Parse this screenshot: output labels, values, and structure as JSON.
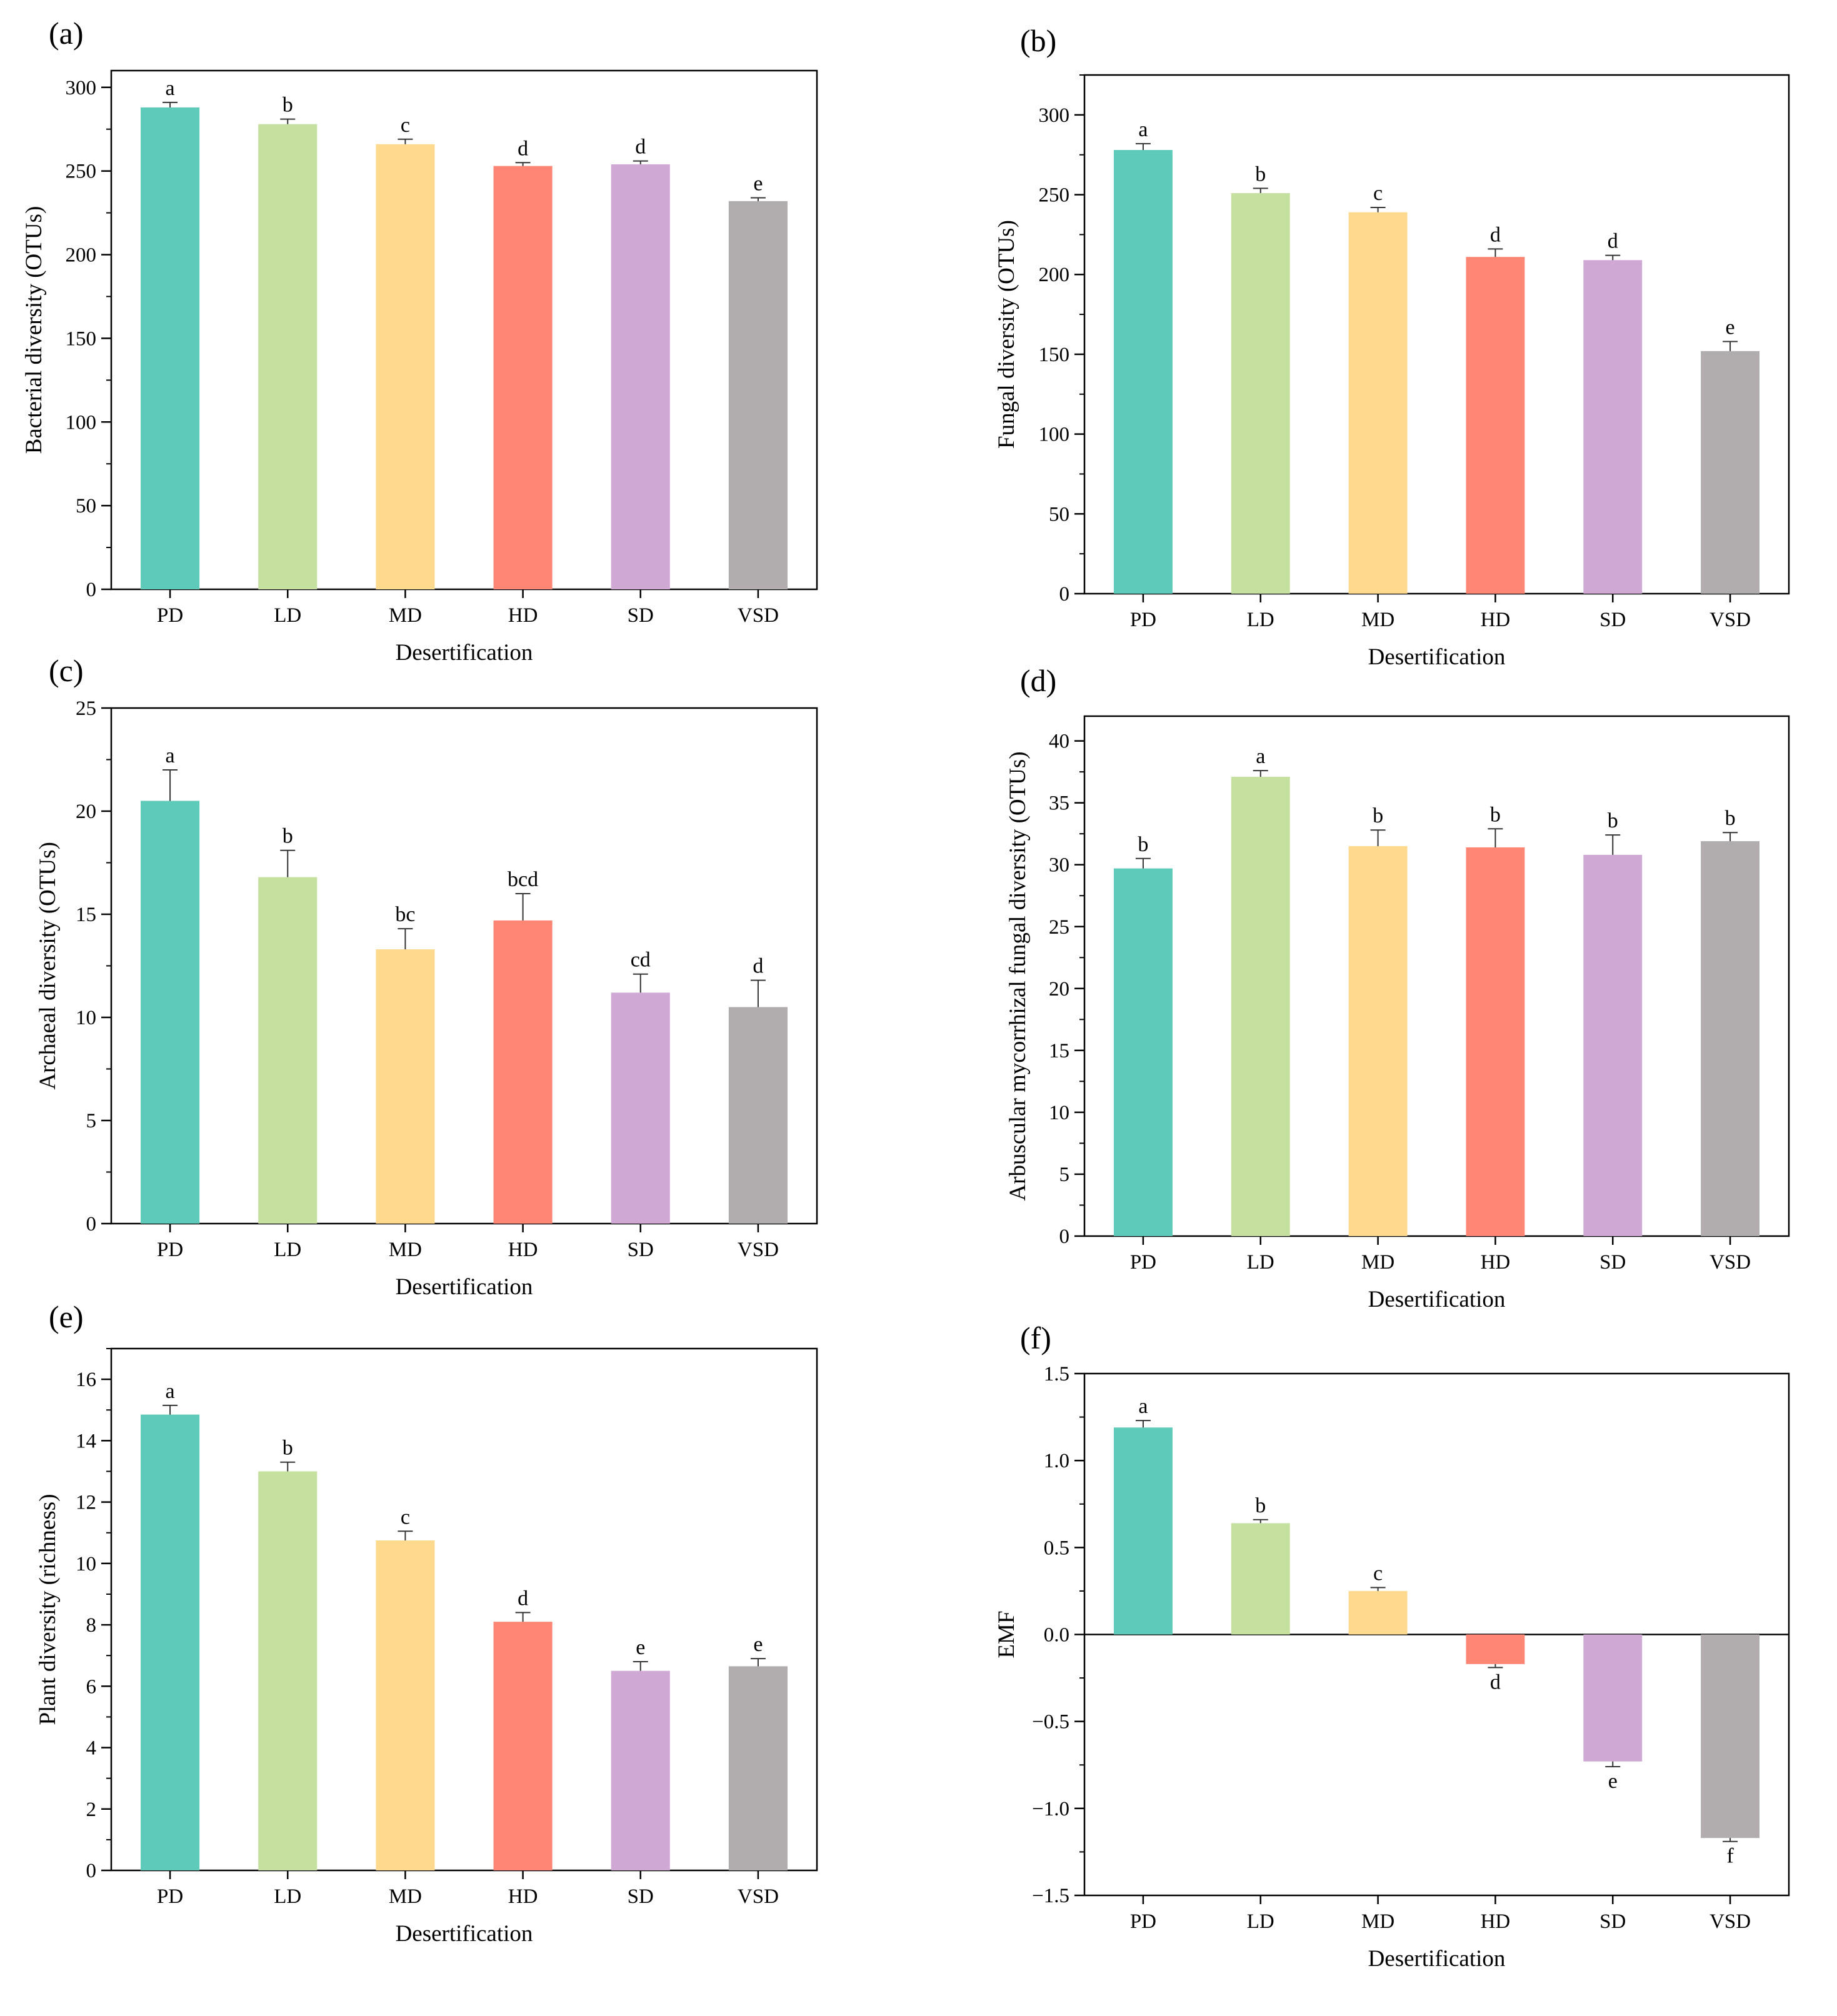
{
  "chart_data": [
    {
      "panel": "(a)",
      "type": "bar",
      "categories": [
        "PD",
        "LD",
        "MD",
        "HD",
        "SD",
        "VSD"
      ],
      "values": [
        288,
        278,
        266,
        253,
        254,
        232
      ],
      "errors": [
        3,
        3,
        3,
        2,
        2,
        2
      ],
      "letters": [
        "a",
        "b",
        "c",
        "d",
        "d",
        "e"
      ],
      "colors": [
        "#5ECBBA",
        "#C5E09F",
        "#FED98E",
        "#FF8674",
        "#CFA8D3",
        "#B1ACAD"
      ],
      "xlabel": "Desertification",
      "ylabel": "Bacterial diversity (OTUs)",
      "ylim": [
        0,
        310
      ],
      "yticks": [
        0,
        50,
        100,
        150,
        200,
        250,
        300
      ],
      "ytick_labels": [
        "0",
        "50",
        "100",
        "150",
        "200",
        "250",
        "300"
      ],
      "minor_step": 25
    },
    {
      "panel": "(b)",
      "type": "bar",
      "categories": [
        "PD",
        "LD",
        "MD",
        "HD",
        "SD",
        "VSD"
      ],
      "values": [
        278,
        251,
        239,
        211,
        209,
        152
      ],
      "errors": [
        4,
        3,
        3,
        5,
        3,
        6
      ],
      "letters": [
        "a",
        "b",
        "c",
        "d",
        "d",
        "e"
      ],
      "colors": [
        "#5ECBBA",
        "#C5E09F",
        "#FED98E",
        "#FF8674",
        "#CFA8D3",
        "#B1ACAD"
      ],
      "xlabel": "Desertification",
      "ylabel": "Fungal diversity (OTUs)",
      "ylim": [
        0,
        325
      ],
      "yticks": [
        0,
        50,
        100,
        150,
        200,
        250,
        300
      ],
      "ytick_labels": [
        "0",
        "50",
        "100",
        "150",
        "200",
        "250",
        "300"
      ],
      "minor_step": 25
    },
    {
      "panel": "(c)",
      "type": "bar",
      "categories": [
        "PD",
        "LD",
        "MD",
        "HD",
        "SD",
        "VSD"
      ],
      "values": [
        20.5,
        16.8,
        13.3,
        14.7,
        11.2,
        10.5
      ],
      "errors": [
        1.5,
        1.3,
        1.0,
        1.3,
        0.9,
        1.3
      ],
      "letters": [
        "a",
        "b",
        "bc",
        "bcd",
        "cd",
        "d"
      ],
      "colors": [
        "#5ECBBA",
        "#C5E09F",
        "#FED98E",
        "#FF8674",
        "#CFA8D3",
        "#B1ACAD"
      ],
      "xlabel": "Desertification",
      "ylabel": "Archaeal diversity (OTUs)",
      "ylim": [
        0,
        25
      ],
      "yticks": [
        0,
        5,
        10,
        15,
        20,
        25
      ],
      "ytick_labels": [
        "0",
        "5",
        "10",
        "15",
        "20",
        "25"
      ],
      "minor_step": 2.5
    },
    {
      "panel": "(d)",
      "type": "bar",
      "categories": [
        "PD",
        "LD",
        "MD",
        "HD",
        "SD",
        "VSD"
      ],
      "values": [
        29.7,
        37.1,
        31.5,
        31.4,
        30.8,
        31.9
      ],
      "errors": [
        0.8,
        0.5,
        1.3,
        1.5,
        1.6,
        0.7
      ],
      "letters": [
        "b",
        "a",
        "b",
        "b",
        "b",
        "b"
      ],
      "colors": [
        "#5ECBBA",
        "#C5E09F",
        "#FED98E",
        "#FF8674",
        "#CFA8D3",
        "#B1ACAD"
      ],
      "xlabel": "Desertification",
      "ylabel": "Arbuscular mycorrhizal fungal diversity (OTUs)",
      "ylim": [
        0,
        42
      ],
      "yticks": [
        0,
        5,
        10,
        15,
        20,
        25,
        30,
        35,
        40
      ],
      "ytick_labels": [
        "0",
        "5",
        "10",
        "15",
        "20",
        "25",
        "30",
        "35",
        "40"
      ],
      "minor_step": 2.5
    },
    {
      "panel": "(e)",
      "type": "bar",
      "categories": [
        "PD",
        "LD",
        "MD",
        "HD",
        "SD",
        "VSD"
      ],
      "values": [
        14.85,
        13.0,
        10.75,
        8.1,
        6.5,
        6.65
      ],
      "errors": [
        0.3,
        0.3,
        0.3,
        0.3,
        0.3,
        0.25
      ],
      "letters": [
        "a",
        "b",
        "c",
        "d",
        "e",
        "e"
      ],
      "colors": [
        "#5ECBBA",
        "#C5E09F",
        "#FED98E",
        "#FF8674",
        "#CFA8D3",
        "#B1ACAD"
      ],
      "xlabel": "Desertification",
      "ylabel": "Plant diversity (richness)",
      "ylim": [
        0,
        17
      ],
      "yticks": [
        0,
        2,
        4,
        6,
        8,
        10,
        12,
        14,
        16
      ],
      "ytick_labels": [
        "0",
        "2",
        "4",
        "6",
        "8",
        "10",
        "12",
        "14",
        "16"
      ],
      "minor_step": 1
    },
    {
      "panel": "(f)",
      "type": "bar",
      "categories": [
        "PD",
        "LD",
        "MD",
        "HD",
        "SD",
        "VSD"
      ],
      "values": [
        1.19,
        0.64,
        0.25,
        -0.17,
        -0.73,
        -1.17
      ],
      "errors": [
        0.04,
        0.02,
        0.02,
        0.02,
        0.03,
        0.02
      ],
      "letters": [
        "a",
        "b",
        "c",
        "d",
        "e",
        "f"
      ],
      "colors": [
        "#5ECBBA",
        "#C5E09F",
        "#FED98E",
        "#FF8674",
        "#CFA8D3",
        "#B1ACAD"
      ],
      "xlabel": "Desertification",
      "ylabel": "EMF",
      "ylim": [
        -1.5,
        1.5
      ],
      "yticks": [
        -1.5,
        -1.0,
        -0.5,
        0.0,
        0.5,
        1.0,
        1.5
      ],
      "ytick_labels": [
        "−1.5",
        "−1.0",
        "−0.5",
        "0.0",
        "0.5",
        "1.0",
        "1.5"
      ],
      "minor_step": 0.25,
      "zero_line": true
    }
  ]
}
